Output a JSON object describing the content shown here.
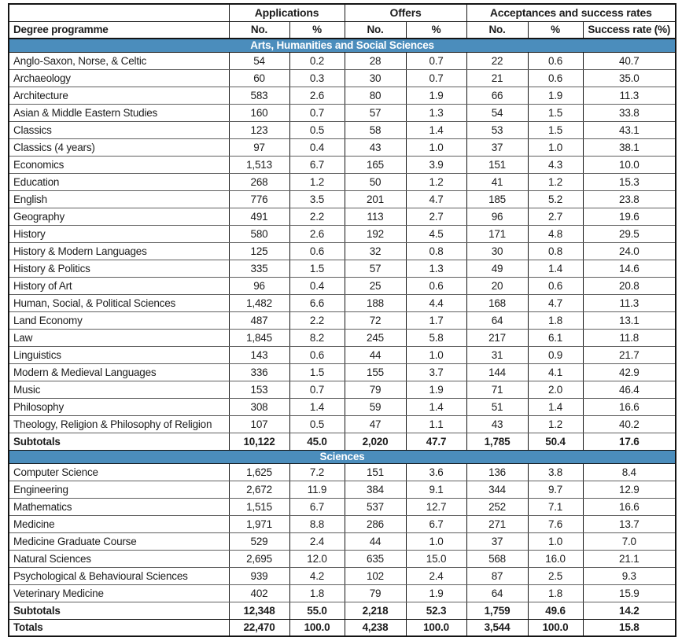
{
  "colors": {
    "banner_blue": "#4b8dbc",
    "border_dark": "#141414",
    "border_light": "#5f5f5f",
    "text": "#1c1c1c",
    "banner_text": "#ffffff"
  },
  "table": {
    "column_groups": [
      {
        "label": "Applications",
        "span": 2
      },
      {
        "label": "Offers",
        "span": 2
      },
      {
        "label": "Acceptances and success rates",
        "span": 3
      }
    ],
    "columns": [
      "Degree programme",
      "No.",
      "%",
      "No.",
      "%",
      "No.",
      "%",
      "Success rate (%)"
    ],
    "sections": [
      {
        "title": "Arts, Humanities and Social Sciences",
        "rows": [
          {
            "programme": "Anglo-Saxon, Norse, & Celtic",
            "values": [
              "54",
              "0.2",
              "28",
              "0.7",
              "22",
              "0.6",
              "40.7"
            ]
          },
          {
            "programme": "Archaeology",
            "values": [
              "60",
              "0.3",
              "30",
              "0.7",
              "21",
              "0.6",
              "35.0"
            ]
          },
          {
            "programme": "Architecture",
            "values": [
              "583",
              "2.6",
              "80",
              "1.9",
              "66",
              "1.9",
              "11.3"
            ]
          },
          {
            "programme": "Asian & Middle Eastern Studies",
            "values": [
              "160",
              "0.7",
              "57",
              "1.3",
              "54",
              "1.5",
              "33.8"
            ]
          },
          {
            "programme": "Classics",
            "values": [
              "123",
              "0.5",
              "58",
              "1.4",
              "53",
              "1.5",
              "43.1"
            ]
          },
          {
            "programme": "Classics (4 years)",
            "values": [
              "97",
              "0.4",
              "43",
              "1.0",
              "37",
              "1.0",
              "38.1"
            ]
          },
          {
            "programme": "Economics",
            "values": [
              "1,513",
              "6.7",
              "165",
              "3.9",
              "151",
              "4.3",
              "10.0"
            ]
          },
          {
            "programme": "Education",
            "values": [
              "268",
              "1.2",
              "50",
              "1.2",
              "41",
              "1.2",
              "15.3"
            ]
          },
          {
            "programme": "English",
            "values": [
              "776",
              "3.5",
              "201",
              "4.7",
              "185",
              "5.2",
              "23.8"
            ]
          },
          {
            "programme": "Geography",
            "values": [
              "491",
              "2.2",
              "113",
              "2.7",
              "96",
              "2.7",
              "19.6"
            ]
          },
          {
            "programme": "History",
            "values": [
              "580",
              "2.6",
              "192",
              "4.5",
              "171",
              "4.8",
              "29.5"
            ]
          },
          {
            "programme": "History & Modern Languages",
            "values": [
              "125",
              "0.6",
              "32",
              "0.8",
              "30",
              "0.8",
              "24.0"
            ]
          },
          {
            "programme": "History & Politics",
            "values": [
              "335",
              "1.5",
              "57",
              "1.3",
              "49",
              "1.4",
              "14.6"
            ]
          },
          {
            "programme": "History of Art",
            "values": [
              "96",
              "0.4",
              "25",
              "0.6",
              "20",
              "0.6",
              "20.8"
            ]
          },
          {
            "programme": "Human, Social, & Political Sciences",
            "values": [
              "1,482",
              "6.6",
              "188",
              "4.4",
              "168",
              "4.7",
              "11.3"
            ]
          },
          {
            "programme": "Land Economy",
            "values": [
              "487",
              "2.2",
              "72",
              "1.7",
              "64",
              "1.8",
              "13.1"
            ]
          },
          {
            "programme": "Law",
            "values": [
              "1,845",
              "8.2",
              "245",
              "5.8",
              "217",
              "6.1",
              "11.8"
            ]
          },
          {
            "programme": "Linguistics",
            "values": [
              "143",
              "0.6",
              "44",
              "1.0",
              "31",
              "0.9",
              "21.7"
            ]
          },
          {
            "programme": "Modern & Medieval Languages",
            "values": [
              "336",
              "1.5",
              "155",
              "3.7",
              "144",
              "4.1",
              "42.9"
            ]
          },
          {
            "programme": "Music",
            "values": [
              "153",
              "0.7",
              "79",
              "1.9",
              "71",
              "2.0",
              "46.4"
            ]
          },
          {
            "programme": "Philosophy",
            "values": [
              "308",
              "1.4",
              "59",
              "1.4",
              "51",
              "1.4",
              "16.6"
            ]
          },
          {
            "programme": "Theology, Religion & Philosophy of Religion",
            "values": [
              "107",
              "0.5",
              "47",
              "1.1",
              "43",
              "1.2",
              "40.2"
            ]
          }
        ],
        "subtotal": {
          "label": "Subtotals",
          "values": [
            "10,122",
            "45.0",
            "2,020",
            "47.7",
            "1,785",
            "50.4",
            "17.6"
          ]
        }
      },
      {
        "title": "Sciences",
        "rows": [
          {
            "programme": "Computer Science",
            "values": [
              "1,625",
              "7.2",
              "151",
              "3.6",
              "136",
              "3.8",
              "8.4"
            ]
          },
          {
            "programme": "Engineering",
            "values": [
              "2,672",
              "11.9",
              "384",
              "9.1",
              "344",
              "9.7",
              "12.9"
            ]
          },
          {
            "programme": "Mathematics",
            "values": [
              "1,515",
              "6.7",
              "537",
              "12.7",
              "252",
              "7.1",
              "16.6"
            ]
          },
          {
            "programme": "Medicine",
            "values": [
              "1,971",
              "8.8",
              "286",
              "6.7",
              "271",
              "7.6",
              "13.7"
            ]
          },
          {
            "programme": "Medicine Graduate Course",
            "values": [
              "529",
              "2.4",
              "44",
              "1.0",
              "37",
              "1.0",
              "7.0"
            ]
          },
          {
            "programme": "Natural Sciences",
            "values": [
              "2,695",
              "12.0",
              "635",
              "15.0",
              "568",
              "16.0",
              "21.1"
            ]
          },
          {
            "programme": "Psychological & Behavioural Sciences",
            "values": [
              "939",
              "4.2",
              "102",
              "2.4",
              "87",
              "2.5",
              "9.3"
            ]
          },
          {
            "programme": "Veterinary Medicine",
            "values": [
              "402",
              "1.8",
              "79",
              "1.9",
              "64",
              "1.8",
              "15.9"
            ]
          }
        ],
        "subtotal": {
          "label": "Subtotals",
          "values": [
            "12,348",
            "55.0",
            "2,218",
            "52.3",
            "1,759",
            "49.6",
            "14.2"
          ]
        }
      }
    ],
    "totals": {
      "label": "Totals",
      "values": [
        "22,470",
        "100.0",
        "4,238",
        "100.0",
        "3,544",
        "100.0",
        "15.8"
      ]
    }
  }
}
